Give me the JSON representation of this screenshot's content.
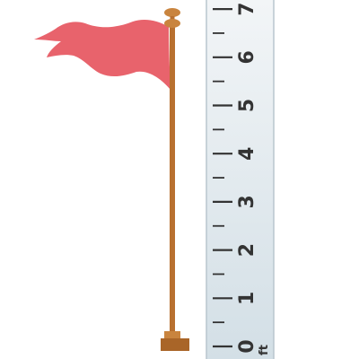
{
  "flag": {
    "color": "#e8636c"
  },
  "pole": {
    "color": "#b8702f",
    "finial_color": "#c9843e",
    "base_color": "#a96528"
  },
  "ruler": {
    "unit_label": "ft",
    "labels": [
      "0",
      "1",
      "2",
      "3",
      "4",
      "5",
      "6",
      "7"
    ],
    "colors": {
      "top": "#f2f5f7",
      "bottom": "#d3dfe6",
      "edge": "#b9c6ce",
      "ticks": "#333333"
    }
  }
}
